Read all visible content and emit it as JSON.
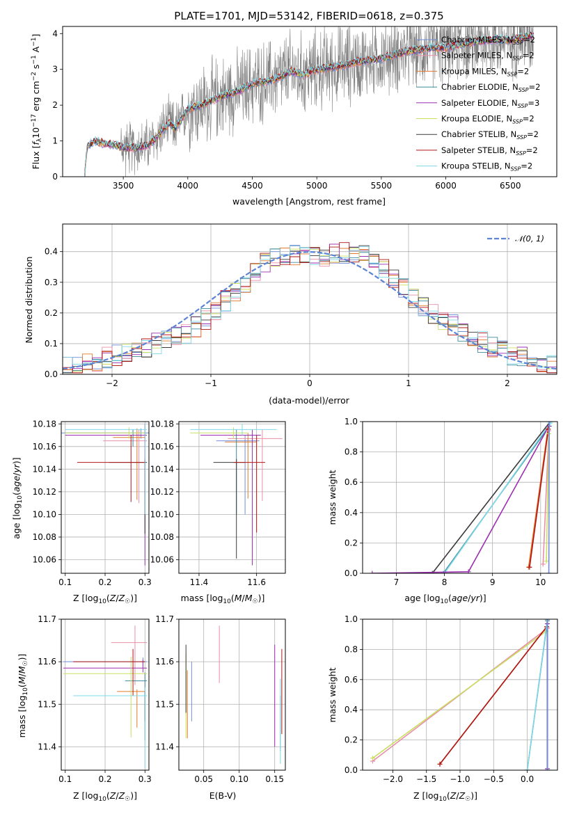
{
  "colors": {
    "Chabrier MILES": "#6f8fd8",
    "Salpeter MILES": "#e98ea6",
    "Kroupa MILES": "#e07a2c",
    "Chabrier ELODIE": "#3a8a9a",
    "Salpeter ELODIE": "#9b2fb0",
    "Kroupa ELODIE": "#c8df60",
    "Chabrier STELIB": "#3a3a3a",
    "Salpeter STELIB": "#b01414",
    "Kroupa STELIB": "#80d8e8",
    "data": "#808080",
    "normal": "#5b84d6"
  },
  "chart_data": [
    {
      "id": "spectrum",
      "type": "line",
      "title": "PLATE=1701, MJD=53142, FIBERID=0618, z=0.375",
      "xlabel": "wavelength [Angstrom, rest frame]",
      "ylabel": "Flux [fλ10⁻¹⁷ erg cm⁻² s⁻¹ A⁻¹]",
      "xlim": [
        3030,
        6860
      ],
      "ylim": [
        0,
        4.2
      ],
      "xticks": [
        3500,
        4000,
        4500,
        5000,
        5500,
        6000,
        6500
      ],
      "yticks": [
        0,
        1,
        2,
        3,
        4
      ],
      "legend_position": "top-right",
      "legend": [
        {
          "name": "Chabrier MILES",
          "sub": "SSP",
          "n": "=2"
        },
        {
          "name": "Salpeter MILES",
          "sub": "SSP",
          "n": "=2"
        },
        {
          "name": "Kroupa MILES",
          "sub": "SSP",
          "n": "=2"
        },
        {
          "name": "Chabrier ELODIE",
          "sub": "SSP",
          "n": "=2"
        },
        {
          "name": "Salpeter ELODIE",
          "sub": "SSP",
          "n": "=3"
        },
        {
          "name": "Kroupa ELODIE",
          "sub": "SSP",
          "n": "=2"
        },
        {
          "name": "Chabrier STELIB",
          "sub": "SSP",
          "n": "=2"
        },
        {
          "name": "Salpeter STELIB",
          "sub": "SSP",
          "n": "=2"
        },
        {
          "name": "Kroupa STELIB",
          "sub": "SSP",
          "n": "=2"
        }
      ],
      "continuum": {
        "x": [
          3200,
          3220,
          3280,
          3350,
          3420,
          3500,
          3600,
          3700,
          3760,
          3800,
          3860,
          3900,
          3950,
          4000,
          4100,
          4200,
          4300,
          4400,
          4500,
          4600,
          4700,
          4800,
          4900,
          5000,
          5100,
          5200,
          5300,
          5400,
          5500,
          5600,
          5700,
          5800,
          5900,
          6000,
          6100,
          6200,
          6300,
          6400,
          6500,
          6600,
          6680
        ],
        "y": [
          0,
          0.85,
          1.0,
          0.93,
          0.9,
          0.82,
          0.8,
          0.9,
          1.1,
          1.3,
          1.5,
          1.35,
          1.6,
          1.9,
          2.0,
          2.15,
          2.3,
          2.4,
          2.6,
          2.65,
          2.75,
          2.95,
          2.85,
          3.0,
          3.05,
          3.1,
          3.2,
          3.25,
          3.3,
          3.4,
          3.5,
          3.55,
          3.6,
          3.6,
          3.7,
          3.75,
          3.8,
          3.85,
          3.8,
          3.9,
          3.95
        ]
      }
    },
    {
      "id": "residuals",
      "type": "line",
      "xlabel": "(data-model)/error",
      "ylabel": "Normed distribution",
      "xlim": [
        -2.5,
        2.5
      ],
      "ylim": [
        0,
        0.49
      ],
      "xticks": [
        -2,
        -1,
        0,
        1,
        2
      ],
      "yticks": [
        0.0,
        0.1,
        0.2,
        0.3,
        0.4
      ],
      "grid": true,
      "legend_position": "top-right",
      "legend": [
        "𝒩(0, 1)"
      ],
      "hist_bins": [
        -2.5,
        2.5,
        50
      ],
      "hist_base": [
        0.022,
        0.03,
        0.038,
        0.045,
        0.055,
        0.062,
        0.072,
        0.08,
        0.09,
        0.1,
        0.11,
        0.12,
        0.135,
        0.155,
        0.18,
        0.21,
        0.24,
        0.27,
        0.3,
        0.33,
        0.36,
        0.38,
        0.39,
        0.39,
        0.385,
        0.38,
        0.385,
        0.39,
        0.395,
        0.4,
        0.39,
        0.37,
        0.34,
        0.31,
        0.28,
        0.25,
        0.22,
        0.2,
        0.18,
        0.16,
        0.14,
        0.12,
        0.105,
        0.09,
        0.078,
        0.065,
        0.055,
        0.045,
        0.035,
        0.028
      ]
    },
    {
      "id": "age-vs-Z",
      "type": "scatter",
      "xlabel": "Z [log₁₀(Z/Z☉)]",
      "ylabel": "age  [log₁₀(age/yr)]",
      "xlim": [
        0.09,
        0.31
      ],
      "ylim": [
        10.048,
        10.182
      ],
      "xticks": [
        0.1,
        0.2,
        0.3
      ],
      "yticks": [
        10.06,
        10.08,
        10.1,
        10.12,
        10.14,
        10.16,
        10.18
      ],
      "grid": true,
      "errorbars": [
        {
          "series": "Chabrier MILES",
          "x": 0.29,
          "xerr": [
            0.2,
            0.02
          ],
          "y": 10.172,
          "yerr": [
            0.005,
            0.004
          ]
        },
        {
          "series": "Salpeter MILES",
          "x": 0.285,
          "xerr": [
            0.09,
            0.02
          ],
          "y": 10.165,
          "yerr": [
            0.055,
            0.01
          ]
        },
        {
          "series": "Kroupa MILES",
          "x": 0.28,
          "xerr": [
            0.06,
            0.02
          ],
          "y": 10.168,
          "yerr": [
            0.055,
            0.008
          ]
        },
        {
          "series": "Chabrier ELODIE",
          "x": 0.27,
          "xerr": [
            0.17,
            0.03
          ],
          "y": 10.17,
          "yerr": [
            0.01,
            0.005
          ]
        },
        {
          "series": "Salpeter ELODIE",
          "x": 0.3,
          "xerr": [
            0.2,
            0.005
          ],
          "y": 10.17,
          "yerr": [
            0.115,
            0.01
          ]
        },
        {
          "series": "Kroupa ELODIE",
          "x": 0.26,
          "xerr": [
            0.16,
            0.04
          ],
          "y": 10.172,
          "yerr": [
            0.005,
            0.005
          ]
        },
        {
          "series": "Chabrier STELIB",
          "x": 0.3,
          "xerr": [
            0.09,
            0.005
          ],
          "y": 10.146,
          "yerr": [
            0.063,
            0.003
          ]
        },
        {
          "series": "Salpeter STELIB",
          "x": 0.265,
          "xerr": [
            0.135,
            0.035
          ],
          "y": 10.146,
          "yerr": [
            0.035,
            0.024
          ]
        },
        {
          "series": "Kroupa STELIB",
          "x": 0.3,
          "xerr": [
            0.2,
            0.005
          ],
          "y": 10.175,
          "yerr": [
            0.075,
            0.005
          ]
        }
      ]
    },
    {
      "id": "age-vs-mass",
      "type": "scatter",
      "xlabel": "mass [log₁₀(M/M☉)]",
      "ylabel": "",
      "xlim": [
        11.33,
        11.7
      ],
      "ylim": [
        10.048,
        10.182
      ],
      "xticks": [
        11.4,
        11.6
      ],
      "yticks": [
        10.06,
        10.08,
        10.1,
        10.12,
        10.14,
        10.16,
        10.18
      ],
      "grid": true,
      "errorbars": [
        {
          "series": "Chabrier MILES",
          "x": 11.56,
          "xerr": [
            0.1,
            0.05
          ],
          "y": 10.165,
          "yerr": [
            0.065,
            0.005
          ]
        },
        {
          "series": "Salpeter MILES",
          "x": 11.62,
          "xerr": [
            0.12,
            0.07
          ],
          "y": 10.167,
          "yerr": [
            0.055,
            0.008
          ]
        },
        {
          "series": "Kroupa MILES",
          "x": 11.57,
          "xerr": [
            0.08,
            0.03
          ],
          "y": 10.164,
          "yerr": [
            0.05,
            0.008
          ]
        },
        {
          "series": "Chabrier ELODIE",
          "x": 11.53,
          "xerr": [
            0.1,
            0.06
          ],
          "y": 10.17,
          "yerr": [
            0.07,
            0.005
          ]
        },
        {
          "series": "Salpeter ELODIE",
          "x": 11.585,
          "xerr": [
            0.18,
            0.03
          ],
          "y": 10.17,
          "yerr": [
            0.115,
            0.005
          ]
        },
        {
          "series": "Kroupa ELODIE",
          "x": 11.52,
          "xerr": [
            0.15,
            0.05
          ],
          "y": 10.172,
          "yerr": [
            0.005,
            0.005
          ]
        },
        {
          "series": "Chabrier STELIB",
          "x": 11.53,
          "xerr": [
            0.08,
            0.03
          ],
          "y": 10.146,
          "yerr": [
            0.085,
            0.003
          ]
        },
        {
          "series": "Salpeter STELIB",
          "x": 11.6,
          "xerr": [
            0.08,
            0.03
          ],
          "y": 10.146,
          "yerr": [
            0.062,
            0.024
          ]
        },
        {
          "series": "Kroupa STELIB",
          "x": 11.55,
          "xerr": [
            0.18,
            0.12
          ],
          "y": 10.175,
          "yerr": [
            0.005,
            0.005
          ]
        }
      ]
    },
    {
      "id": "weight-vs-age",
      "type": "line",
      "xlabel": "age  [log₁₀(age/yr)]",
      "ylabel": "mass weight",
      "xlim": [
        6.3,
        10.35
      ],
      "ylim": [
        0,
        1.0
      ],
      "xticks": [
        7,
        8,
        9,
        10
      ],
      "yticks": [
        0.0,
        0.2,
        0.4,
        0.6,
        0.8,
        1.0
      ],
      "grid": true,
      "lines": [
        {
          "series": "Chabrier STELIB",
          "x": [
            7.75,
            10.2
          ],
          "y": [
            0.0,
            1.0
          ]
        },
        {
          "series": "Chabrier ELODIE",
          "x": [
            7.98,
            10.18
          ],
          "y": [
            0.0,
            0.97
          ]
        },
        {
          "series": "Kroupa STELIB",
          "x": [
            8.0,
            10.2
          ],
          "y": [
            0.0,
            0.99
          ]
        },
        {
          "series": "Salpeter ELODIE",
          "x": [
            6.5,
            8.5,
            10.17
          ],
          "y": [
            0.0,
            0.01,
            0.97
          ]
        },
        {
          "series": "Kroupa MILES",
          "x": [
            9.75,
            10.15
          ],
          "y": [
            0.04,
            0.95
          ]
        },
        {
          "series": "Salpeter STELIB",
          "x": [
            9.77,
            10.16
          ],
          "y": [
            0.04,
            0.95
          ]
        },
        {
          "series": "Salpeter MILES",
          "x": [
            10.05,
            10.17
          ],
          "y": [
            0.06,
            0.94
          ]
        },
        {
          "series": "Kroupa ELODIE",
          "x": [
            10.12,
            10.17
          ],
          "y": [
            0.08,
            0.92
          ]
        },
        {
          "series": "Chabrier MILES",
          "x": [
            10.17,
            10.18
          ],
          "y": [
            0.0,
            1.0
          ]
        }
      ]
    },
    {
      "id": "mass-vs-Z",
      "type": "scatter",
      "xlabel": "Z [log₁₀(Z/Z☉)]",
      "ylabel": "mass [log₁₀(M/M☉)]",
      "xlim": [
        0.09,
        0.31
      ],
      "ylim": [
        11.345,
        11.7
      ],
      "xticks": [
        0.1,
        0.2,
        0.3
      ],
      "yticks": [
        11.4,
        11.5,
        11.6,
        11.7
      ],
      "grid": true,
      "errorbars": [
        {
          "series": "Chabrier MILES",
          "x": 0.295,
          "xerr": [
            0.2,
            0.01
          ],
          "y": 11.6,
          "yerr": [
            0.01,
            0.01
          ]
        },
        {
          "series": "Salpeter MILES",
          "x": 0.275,
          "xerr": [
            0.06,
            0.03
          ],
          "y": 11.645,
          "yerr": [
            0.1,
            0.04
          ]
        },
        {
          "series": "Kroupa MILES",
          "x": 0.28,
          "xerr": [
            0.05,
            0.02
          ],
          "y": 11.53,
          "yerr": [
            0.085,
            0.005
          ]
        },
        {
          "series": "Chabrier ELODIE",
          "x": 0.3,
          "xerr": [
            0.05,
            0.005
          ],
          "y": 11.555,
          "yerr": [
            0.14,
            0.02
          ]
        },
        {
          "series": "Salpeter ELODIE",
          "x": 0.295,
          "xerr": [
            0.2,
            0.01
          ],
          "y": 11.585,
          "yerr": [
            0.01,
            0.02
          ]
        },
        {
          "series": "Kroupa ELODIE",
          "x": 0.265,
          "xerr": [
            0.17,
            0.04
          ],
          "y": 11.572,
          "yerr": [
            0.15,
            0.04
          ]
        },
        {
          "series": "Chabrier STELIB",
          "x": 0.3,
          "xerr": [
            0.08,
            0.005
          ],
          "y": 11.52,
          "yerr": [
            0.06,
            0.01
          ]
        },
        {
          "series": "Salpeter STELIB",
          "x": 0.27,
          "xerr": [
            0.15,
            0.03
          ],
          "y": 11.6,
          "yerr": [
            0.08,
            0.03
          ]
        },
        {
          "series": "Kroupa STELIB",
          "x": 0.3,
          "xerr": [
            0.18,
            0.005
          ],
          "y": 11.52,
          "yerr": [
            0.17,
            0.02
          ]
        }
      ]
    },
    {
      "id": "mass-vs-ebv",
      "type": "scatter",
      "xlabel": "E(B-V)",
      "ylabel": "",
      "xlim": [
        0.015,
        0.165
      ],
      "ylim": [
        11.345,
        11.7
      ],
      "xticks": [
        0.05,
        0.1,
        0.15
      ],
      "yticks": [
        11.4,
        11.5,
        11.6,
        11.7
      ],
      "grid": true,
      "errorbars": [
        {
          "series": "Chabrier MILES",
          "x": 0.033,
          "y": 11.53,
          "yerr": [
            0.07,
            0.07
          ]
        },
        {
          "series": "Salpeter MILES",
          "x": 0.072,
          "y": 11.615,
          "yerr": [
            0.065,
            0.07
          ]
        },
        {
          "series": "Kroupa MILES",
          "x": 0.027,
          "y": 11.5,
          "yerr": [
            0.08,
            0.08
          ]
        },
        {
          "series": "Chabrier ELODIE",
          "x": 0.158,
          "y": 11.45,
          "yerr": [
            0.06,
            0.07
          ]
        },
        {
          "series": "Salpeter ELODIE",
          "x": 0.15,
          "y": 11.52,
          "yerr": [
            0.12,
            0.12
          ]
        },
        {
          "series": "Kroupa ELODIE",
          "x": 0.025,
          "y": 11.52,
          "yerr": [
            0.1,
            0.1
          ]
        },
        {
          "series": "Chabrier STELIB",
          "x": 0.025,
          "y": 11.56,
          "yerr": [
            0.08,
            0.08
          ]
        },
        {
          "series": "Salpeter STELIB",
          "x": 0.16,
          "y": 11.53,
          "yerr": [
            0.1,
            0.1
          ]
        },
        {
          "series": "Kroupa STELIB",
          "x": 0.158,
          "y": 11.46,
          "yerr": [
            0.1,
            0.1
          ]
        }
      ]
    },
    {
      "id": "weight-vs-Z",
      "type": "line",
      "xlabel": "Z [log₁₀(Z/Z☉)]",
      "ylabel": "mass weight",
      "xlim": [
        -2.45,
        0.45
      ],
      "ylim": [
        0,
        1.0
      ],
      "xticks": [
        -2.0,
        -1.5,
        -1.0,
        -0.5,
        0.0
      ],
      "yticks": [
        0.0,
        0.2,
        0.4,
        0.6,
        0.8,
        1.0
      ],
      "grid": true,
      "lines": [
        {
          "series": "Salpeter MILES",
          "x": [
            -2.3,
            0.3
          ],
          "y": [
            0.06,
            0.94
          ]
        },
        {
          "series": "Kroupa ELODIE",
          "x": [
            -2.3,
            0.28
          ],
          "y": [
            0.08,
            0.92
          ]
        },
        {
          "series": "Kroupa MILES",
          "x": [
            -1.3,
            0.29
          ],
          "y": [
            0.04,
            0.95
          ]
        },
        {
          "series": "Salpeter STELIB",
          "x": [
            -1.3,
            0.29
          ],
          "y": [
            0.04,
            0.95
          ]
        },
        {
          "series": "Chabrier ELODIE",
          "x": [
            0.0,
            0.3
          ],
          "y": [
            0.0,
            0.99
          ]
        },
        {
          "series": "Kroupa STELIB",
          "x": [
            0.0,
            0.3
          ],
          "y": [
            0.0,
            1.0
          ]
        },
        {
          "series": "Salpeter ELODIE",
          "x": [
            0.3,
            0.3
          ],
          "y": [
            0.01,
            0.97
          ]
        },
        {
          "series": "Chabrier STELIB",
          "x": [
            0.3,
            0.3
          ],
          "y": [
            0.0,
            1.0
          ]
        },
        {
          "series": "Chabrier MILES",
          "x": [
            0.3,
            0.3
          ],
          "y": [
            0.0,
            1.0
          ]
        }
      ]
    }
  ]
}
